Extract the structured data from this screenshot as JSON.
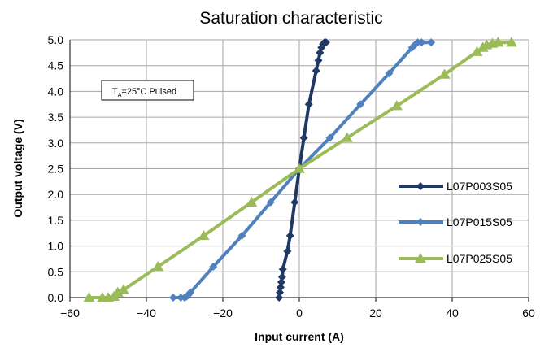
{
  "chart_data": {
    "type": "line",
    "title": "Saturation characteristic",
    "xlabel": "Input current (A)",
    "ylabel": "Output voltage (V)",
    "xlim": [
      -60,
      60
    ],
    "ylim": [
      0,
      5
    ],
    "x_ticks": [
      "−60",
      "−40",
      "−20",
      "0",
      "20",
      "40",
      "60"
    ],
    "y_ticks": [
      "0.0",
      "0.5",
      "1.0",
      "1.5",
      "2.0",
      "2.5",
      "3.0",
      "3.5",
      "4.0",
      "4.5",
      "5.0"
    ],
    "grid": true,
    "legend_position": "right",
    "annotation": {
      "main": "T",
      "sub": "A",
      "rest": "=25°C Pulsed"
    },
    "series": [
      {
        "name": "L07P003S05",
        "color": "#1f3864",
        "marker": "diamond",
        "points": [
          [
            -5.3,
            0.0
          ],
          [
            -5.1,
            0.1
          ],
          [
            -4.9,
            0.2
          ],
          [
            -4.7,
            0.3
          ],
          [
            -4.5,
            0.4
          ],
          [
            -4.3,
            0.55
          ],
          [
            -3.1,
            0.9
          ],
          [
            -2.4,
            1.2
          ],
          [
            -1.2,
            1.85
          ],
          [
            0,
            2.5
          ],
          [
            1.2,
            3.1
          ],
          [
            2.5,
            3.75
          ],
          [
            4.4,
            4.4
          ],
          [
            5.0,
            4.6
          ],
          [
            5.4,
            4.75
          ],
          [
            5.8,
            4.85
          ],
          [
            6.2,
            4.92
          ],
          [
            6.6,
            4.95
          ],
          [
            7.0,
            4.95
          ]
        ]
      },
      {
        "name": "L07P015S05",
        "color": "#4f81bd",
        "marker": "diamond",
        "points": [
          [
            -33.0,
            0.0
          ],
          [
            -31.0,
            0.0
          ],
          [
            -30.0,
            0.0
          ],
          [
            -29.5,
            0.02
          ],
          [
            -29.0,
            0.05
          ],
          [
            -28.5,
            0.1
          ],
          [
            -22.5,
            0.6
          ],
          [
            -15.0,
            1.2
          ],
          [
            -7.5,
            1.85
          ],
          [
            0,
            2.5
          ],
          [
            8.0,
            3.1
          ],
          [
            16.0,
            3.75
          ],
          [
            23.5,
            4.35
          ],
          [
            29.5,
            4.85
          ],
          [
            30.2,
            4.9
          ],
          [
            31.0,
            4.95
          ],
          [
            32.0,
            4.95
          ],
          [
            34.5,
            4.95
          ]
        ]
      },
      {
        "name": "L07P025S05",
        "color": "#9bbb59",
        "marker": "triangle",
        "points": [
          [
            -55.0,
            0.0
          ],
          [
            -51.5,
            0.0
          ],
          [
            -50.0,
            0.0
          ],
          [
            -48.5,
            0.02
          ],
          [
            -47.5,
            0.1
          ],
          [
            -46.0,
            0.15
          ],
          [
            -37.0,
            0.6
          ],
          [
            -25.0,
            1.2
          ],
          [
            -12.5,
            1.85
          ],
          [
            0,
            2.5
          ],
          [
            12.5,
            3.1
          ],
          [
            25.5,
            3.72
          ],
          [
            38.0,
            4.33
          ],
          [
            46.5,
            4.77
          ],
          [
            48.0,
            4.85
          ],
          [
            49.0,
            4.9
          ],
          [
            50.5,
            4.93
          ],
          [
            52.0,
            4.95
          ],
          [
            55.5,
            4.95
          ]
        ]
      }
    ]
  }
}
